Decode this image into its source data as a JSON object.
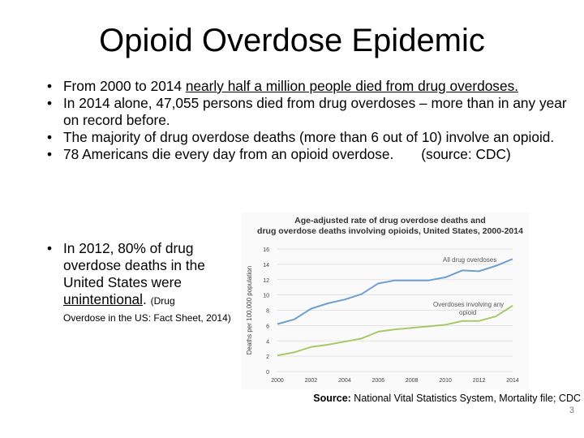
{
  "slide": {
    "title": "Opioid Overdose Epidemic",
    "bullets": [
      {
        "pre": "From 2000 to 2014 ",
        "underlined": "nearly half a million people died from drug overdoses.",
        "post": ""
      },
      {
        "text": "In 2014 alone, 47,055 persons died from drug overdoses – more than in any year on record before."
      },
      {
        "text": "The majority of drug overdose deaths (more than 6 out of 10) involve an opioid."
      },
      {
        "text": "78 Americans die every day from an opioid overdose.",
        "source": "(source: CDC)"
      }
    ],
    "left_bullet": {
      "pre": "In 2012, 80% of drug overdose deaths in the United States were ",
      "underlined": "unintentional",
      "post": ". ",
      "citation_part1": "(Drug",
      "citation_part2": "Overdose in the US: Fact Sheet, 2014)"
    },
    "source_label": "Source:",
    "source_text": " National Vital Statistics System, Mortality file; CDC",
    "slide_number": "3"
  },
  "chart_data": {
    "type": "line",
    "title": "Age-adjusted rate of drug overdose deaths and drug overdose deaths involving opioids, United States, 2000-2014",
    "title_line1": "Age-adjusted rate of drug overdose deaths and",
    "title_line2": "drug overdose deaths involving opioids, United States, 2000-2014",
    "ylabel": "Deaths per 100,000 population",
    "xlabel": "",
    "ylim": [
      0,
      16
    ],
    "y_ticks": [
      0,
      2,
      4,
      6,
      8,
      10,
      12,
      14,
      16
    ],
    "x_ticks": [
      2000,
      2002,
      2004,
      2006,
      2008,
      2010,
      2012,
      2014
    ],
    "x": [
      2000,
      2001,
      2002,
      2003,
      2004,
      2005,
      2006,
      2007,
      2008,
      2009,
      2010,
      2011,
      2012,
      2013,
      2014
    ],
    "series": [
      {
        "name": "All drug overdoses",
        "color": "#6f9fd0",
        "values": [
          6.2,
          6.8,
          8.2,
          8.9,
          9.4,
          10.1,
          11.5,
          11.9,
          11.9,
          11.9,
          12.3,
          13.2,
          13.1,
          13.8,
          14.7
        ]
      },
      {
        "name": "Overdoses involving any opioid",
        "color": "#a8c96a",
        "values": [
          2.1,
          2.5,
          3.2,
          3.5,
          3.9,
          4.3,
          5.2,
          5.5,
          5.7,
          5.9,
          6.1,
          6.6,
          6.6,
          7.2,
          8.6
        ]
      }
    ],
    "annotations": [
      {
        "text": "All drug overdoses"
      },
      {
        "text": "Overdoses involving any"
      },
      {
        "text": "opioid"
      }
    ]
  }
}
